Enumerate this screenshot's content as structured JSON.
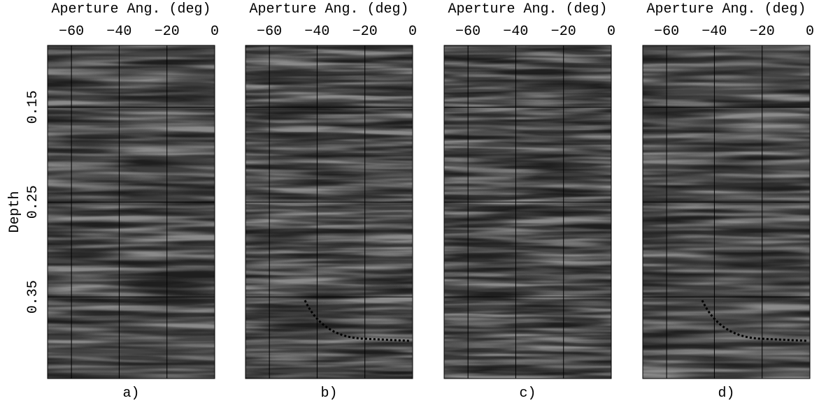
{
  "chart_data": [
    {
      "type": "image",
      "xlabel": "Aperture Ang. (deg)",
      "ylabel": "Depth",
      "caption": "a)",
      "xlim": [
        -70,
        0
      ],
      "xticks": [
        {
          "value": -60,
          "label": "−60"
        },
        {
          "value": -40,
          "label": "−40"
        },
        {
          "value": -20,
          "label": "−20"
        },
        0
      ],
      "ylim": [
        0.085,
        0.436
      ],
      "yticks": [
        0.15,
        0.25,
        0.35
      ],
      "grid": true
    },
    {
      "type": "image",
      "xlabel": "Aperture Ang. (deg)",
      "caption": "b)",
      "xlim": [
        -70,
        0
      ],
      "xticks": [
        {
          "value": -60,
          "label": "−60"
        },
        {
          "value": -40,
          "label": "−40"
        },
        {
          "value": -20,
          "label": "−20"
        },
        0
      ],
      "ylim": [
        0.085,
        0.436
      ],
      "yticks": [
        0.15,
        0.25,
        0.35
      ],
      "grid": true
    },
    {
      "type": "image",
      "xlabel": "Aperture Ang. (deg)",
      "caption": "c)",
      "xlim": [
        -70,
        0
      ],
      "xticks": [
        {
          "value": -60,
          "label": "−60"
        },
        {
          "value": -40,
          "label": "−40"
        },
        {
          "value": -20,
          "label": "−20"
        },
        0
      ],
      "ylim": [
        0.085,
        0.436
      ],
      "yticks": [
        0.15,
        0.25,
        0.35
      ],
      "grid": true
    },
    {
      "type": "image",
      "xlabel": "Aperture Ang. (deg)",
      "caption": "d)",
      "xlim": [
        -70,
        0
      ],
      "xticks": [
        {
          "value": -60,
          "label": "−60"
        },
        {
          "value": -40,
          "label": "−40"
        },
        {
          "value": -20,
          "label": "−20"
        },
        0
      ],
      "ylim": [
        0.085,
        0.436
      ],
      "yticks": [
        0.15,
        0.25,
        0.35
      ],
      "grid": true
    }
  ]
}
